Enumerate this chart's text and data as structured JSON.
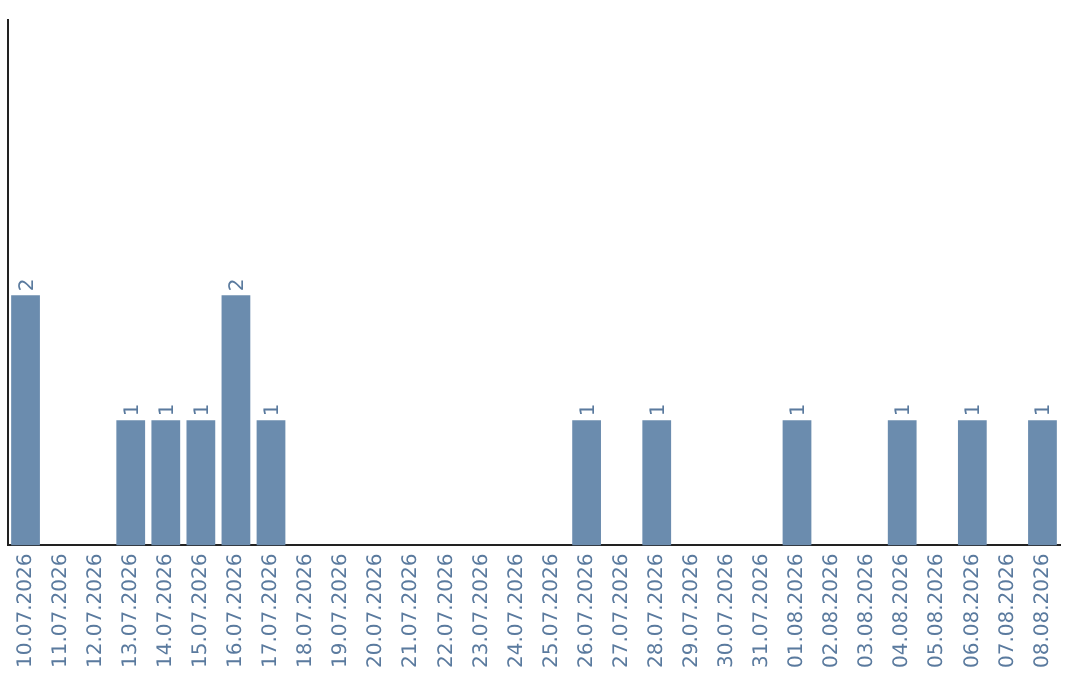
{
  "chart_data": {
    "type": "bar",
    "categories": [
      "10.07.2026",
      "11.07.2026",
      "12.07.2026",
      "13.07.2026",
      "14.07.2026",
      "15.07.2026",
      "16.07.2026",
      "17.07.2026",
      "18.07.2026",
      "19.07.2026",
      "20.07.2026",
      "21.07.2026",
      "22.07.2026",
      "23.07.2026",
      "24.07.2026",
      "25.07.2026",
      "26.07.2026",
      "27.07.2026",
      "28.07.2026",
      "29.07.2026",
      "30.07.2026",
      "31.07.2026",
      "01.08.2026",
      "02.08.2026",
      "03.08.2026",
      "04.08.2026",
      "05.08.2026",
      "06.08.2026",
      "07.08.2026",
      "08.08.2026"
    ],
    "values": [
      2,
      0,
      0,
      1,
      1,
      1,
      2,
      1,
      0,
      0,
      0,
      0,
      0,
      0,
      0,
      0,
      1,
      0,
      1,
      0,
      0,
      0,
      1,
      0,
      0,
      1,
      0,
      1,
      0,
      1
    ],
    "value_labels": [
      "2",
      null,
      null,
      "1",
      "1",
      "1",
      "2",
      "1",
      null,
      null,
      null,
      null,
      null,
      null,
      null,
      null,
      "1",
      null,
      "1",
      null,
      null,
      null,
      "1",
      null,
      null,
      "1",
      null,
      "1",
      null,
      "1"
    ],
    "color": "#6b8cae",
    "ylim": [
      0,
      4.2
    ],
    "tick_labels": "x",
    "grid": false,
    "legend": false
  }
}
